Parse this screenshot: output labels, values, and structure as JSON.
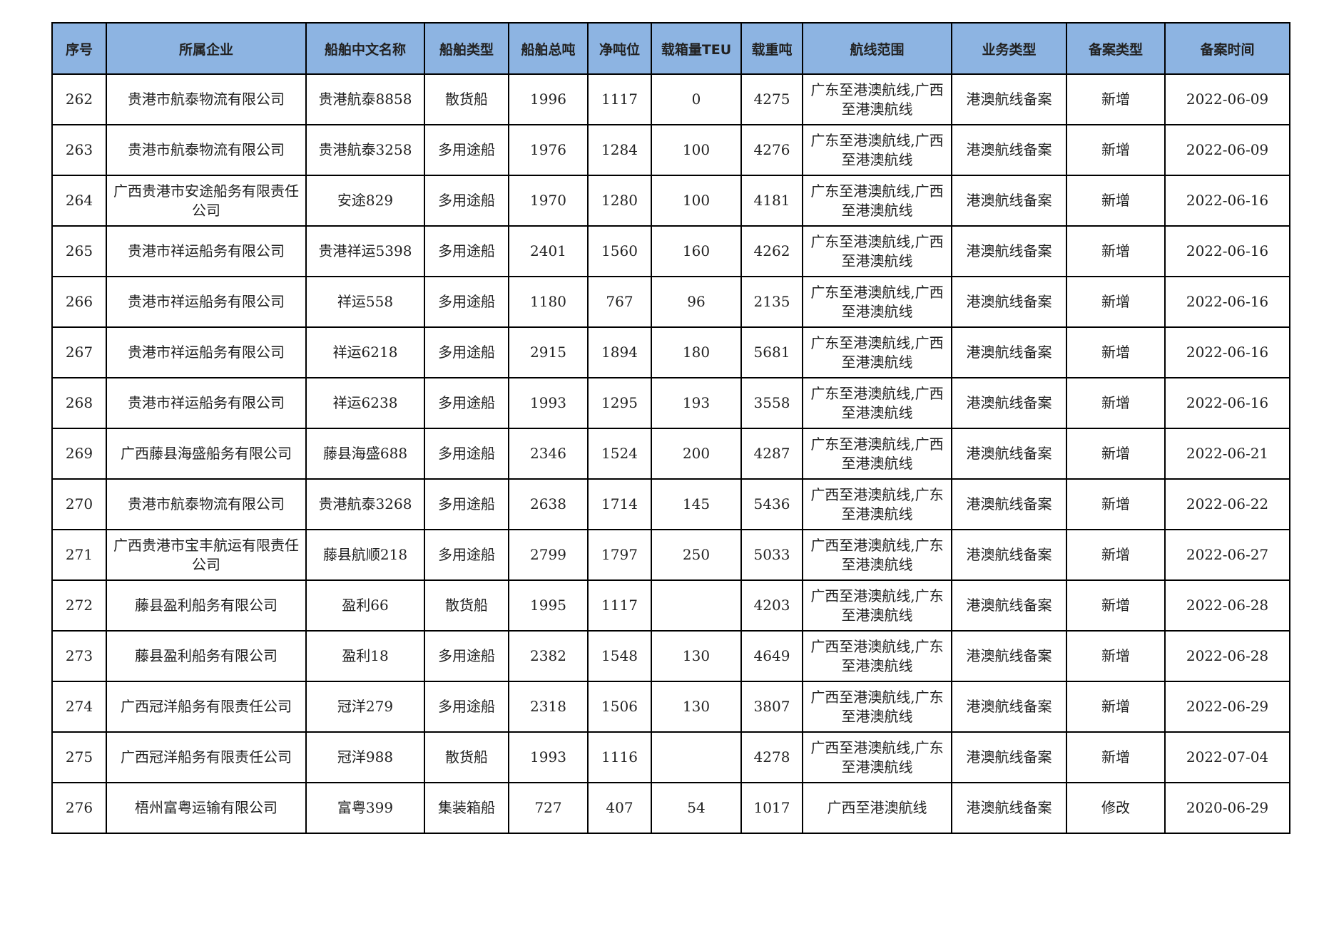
{
  "table": {
    "headers": [
      "序号",
      "所属企业",
      "船舶中文名称",
      "船舶类型",
      "船舶总吨",
      "净吨位",
      "载箱量TEU",
      "载重吨",
      "航线范围",
      "业务类型",
      "备案类型",
      "备案时间"
    ],
    "rows": [
      [
        "262",
        "贵港市航泰物流有限公司",
        "贵港航泰8858",
        "散货船",
        "1996",
        "1117",
        "0",
        "4275",
        "广东至港澳航线,广西至港澳航线",
        "港澳航线备案",
        "新增",
        "2022-06-09"
      ],
      [
        "263",
        "贵港市航泰物流有限公司",
        "贵港航泰3258",
        "多用途船",
        "1976",
        "1284",
        "100",
        "4276",
        "广东至港澳航线,广西至港澳航线",
        "港澳航线备案",
        "新增",
        "2022-06-09"
      ],
      [
        "264",
        "广西贵港市安途船务有限责任公司",
        "安途829",
        "多用途船",
        "1970",
        "1280",
        "100",
        "4181",
        "广东至港澳航线,广西至港澳航线",
        "港澳航线备案",
        "新增",
        "2022-06-16"
      ],
      [
        "265",
        "贵港市祥运船务有限公司",
        "贵港祥运5398",
        "多用途船",
        "2401",
        "1560",
        "160",
        "4262",
        "广东至港澳航线,广西至港澳航线",
        "港澳航线备案",
        "新增",
        "2022-06-16"
      ],
      [
        "266",
        "贵港市祥运船务有限公司",
        "祥运558",
        "多用途船",
        "1180",
        "767",
        "96",
        "2135",
        "广东至港澳航线,广西至港澳航线",
        "港澳航线备案",
        "新增",
        "2022-06-16"
      ],
      [
        "267",
        "贵港市祥运船务有限公司",
        "祥运6218",
        "多用途船",
        "2915",
        "1894",
        "180",
        "5681",
        "广东至港澳航线,广西至港澳航线",
        "港澳航线备案",
        "新增",
        "2022-06-16"
      ],
      [
        "268",
        "贵港市祥运船务有限公司",
        "祥运6238",
        "多用途船",
        "1993",
        "1295",
        "193",
        "3558",
        "广东至港澳航线,广西至港澳航线",
        "港澳航线备案",
        "新增",
        "2022-06-16"
      ],
      [
        "269",
        "广西藤县海盛船务有限公司",
        "藤县海盛688",
        "多用途船",
        "2346",
        "1524",
        "200",
        "4287",
        "广东至港澳航线,广西至港澳航线",
        "港澳航线备案",
        "新增",
        "2022-06-21"
      ],
      [
        "270",
        "贵港市航泰物流有限公司",
        "贵港航泰3268",
        "多用途船",
        "2638",
        "1714",
        "145",
        "5436",
        "广西至港澳航线,广东至港澳航线",
        "港澳航线备案",
        "新增",
        "2022-06-22"
      ],
      [
        "271",
        "广西贵港市宝丰航运有限责任公司",
        "藤县航顺218",
        "多用途船",
        "2799",
        "1797",
        "250",
        "5033",
        "广西至港澳航线,广东至港澳航线",
        "港澳航线备案",
        "新增",
        "2022-06-27"
      ],
      [
        "272",
        "藤县盈利船务有限公司",
        "盈利66",
        "散货船",
        "1995",
        "1117",
        "",
        "4203",
        "广西至港澳航线,广东至港澳航线",
        "港澳航线备案",
        "新增",
        "2022-06-28"
      ],
      [
        "273",
        "藤县盈利船务有限公司",
        "盈利18",
        "多用途船",
        "2382",
        "1548",
        "130",
        "4649",
        "广西至港澳航线,广东至港澳航线",
        "港澳航线备案",
        "新增",
        "2022-06-28"
      ],
      [
        "274",
        "广西冠洋船务有限责任公司",
        "冠洋279",
        "多用途船",
        "2318",
        "1506",
        "130",
        "3807",
        "广西至港澳航线,广东至港澳航线",
        "港澳航线备案",
        "新增",
        "2022-06-29"
      ],
      [
        "275",
        "广西冠洋船务有限责任公司",
        "冠洋988",
        "散货船",
        "1993",
        "1116",
        "",
        "4278",
        "广西至港澳航线,广东至港澳航线",
        "港澳航线备案",
        "新增",
        "2022-07-04"
      ],
      [
        "276",
        "梧州富粤运输有限公司",
        "富粤399",
        "集装箱船",
        "727",
        "407",
        "54",
        "1017",
        "广西至港澳航线",
        "港澳航线备案",
        "修改",
        "2020-06-29"
      ]
    ]
  }
}
